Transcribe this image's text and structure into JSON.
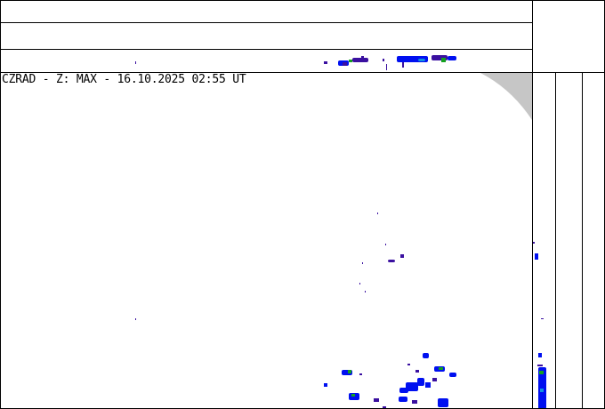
{
  "title": "CZRAD - Z: MAX - 16.10.2025 02:55 UT",
  "colors": {
    "echo_weak": "#3a10a0",
    "echo_mid": "#0010f0",
    "echo_strong": "#14a020",
    "echo_cyan": "#1090e0",
    "out_of_range": "#c6c6c6",
    "line": "#000000"
  }
}
